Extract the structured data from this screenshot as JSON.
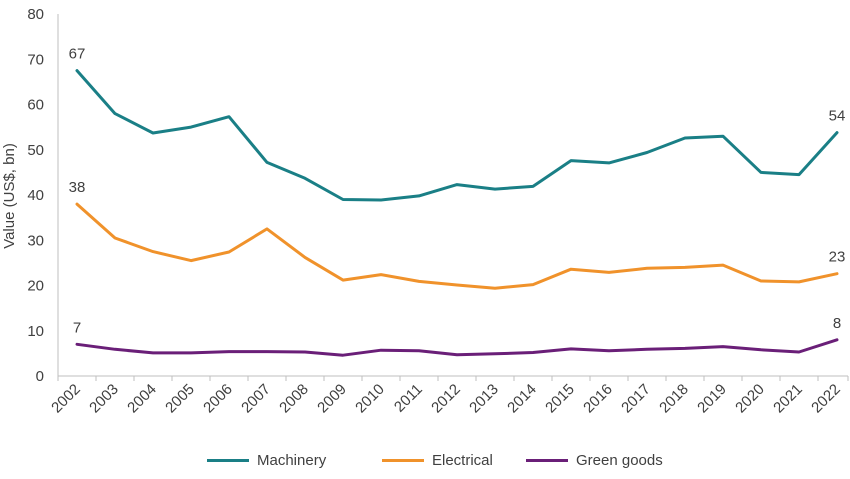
{
  "chart_data": {
    "type": "line",
    "title": "",
    "xlabel": "",
    "ylabel": "Value (US$, bn)",
    "ylim": [
      0,
      80
    ],
    "yticks": [
      0,
      10,
      20,
      30,
      40,
      50,
      60,
      70,
      80
    ],
    "grid": false,
    "legend_position": "bottom",
    "categories": [
      "2002",
      "2003",
      "2004",
      "2005",
      "2006",
      "2007",
      "2008",
      "2009",
      "2010",
      "2011",
      "2012",
      "2013",
      "2014",
      "2015",
      "2016",
      "2017",
      "2018",
      "2019",
      "2020",
      "2021",
      "2022"
    ],
    "series": [
      {
        "name": "Machinery",
        "color": "#1a7f86",
        "values": [
          67.5,
          58,
          53.7,
          55,
          57.3,
          47.2,
          43.7,
          39,
          38.9,
          39.8,
          42.3,
          41.3,
          41.9,
          47.6,
          47.1,
          49.4,
          52.6,
          53,
          45,
          44.5,
          53.8
        ],
        "labels": [
          {
            "index": 0,
            "text": "67"
          },
          {
            "index": 20,
            "text": "54"
          }
        ]
      },
      {
        "name": "Electrical",
        "color": "#f0922b",
        "values": [
          38,
          30.5,
          27.5,
          25.5,
          27.4,
          32.5,
          26.2,
          21.2,
          22.4,
          20.9,
          20.1,
          19.4,
          20.2,
          23.6,
          22.9,
          23.8,
          24,
          24.5,
          21,
          20.8,
          22.6
        ],
        "labels": [
          {
            "index": 0,
            "text": "38"
          },
          {
            "index": 20,
            "text": "23"
          }
        ]
      },
      {
        "name": "Green goods",
        "color": "#6a1f78",
        "values": [
          7,
          5.9,
          5.1,
          5.1,
          5.4,
          5.4,
          5.3,
          4.6,
          5.7,
          5.6,
          4.7,
          4.9,
          5.2,
          6,
          5.6,
          5.9,
          6.1,
          6.5,
          5.8,
          5.3,
          8
        ],
        "labels": [
          {
            "index": 0,
            "text": "7"
          },
          {
            "index": 20,
            "text": "8"
          }
        ]
      }
    ]
  }
}
